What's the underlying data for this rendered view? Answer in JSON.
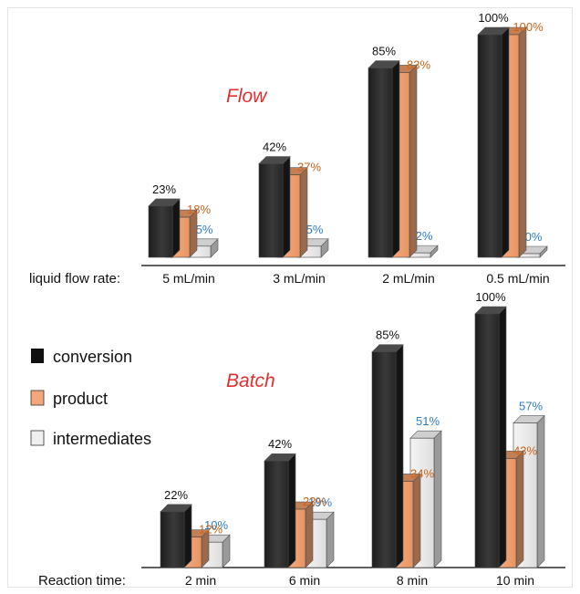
{
  "legend": [
    {
      "label": "conversion",
      "color": "#2b2b2b"
    },
    {
      "label": "product",
      "color": "#f4a77a"
    },
    {
      "label": "intermediates",
      "color": "#ececec"
    }
  ],
  "label_colors": {
    "conversion": "#111111",
    "product": "#c8651d",
    "intermediates": "#2f7fc4"
  },
  "chart_data": [
    {
      "type": "bar",
      "title": "Flow",
      "xlabel": "liquid flow rate:",
      "categories": [
        "5 mL/min",
        "3 mL/min",
        "2 mL/min",
        "0.5 mL/min"
      ],
      "series": [
        {
          "name": "conversion",
          "values": [
            23,
            42,
            85,
            100
          ],
          "labels": [
            "23%",
            "42%",
            "85%",
            "100%"
          ]
        },
        {
          "name": "product",
          "values": [
            18,
            37,
            83,
            100
          ],
          "labels": [
            "18%",
            "37%",
            "83%",
            "100%"
          ]
        },
        {
          "name": "intermediates",
          "values": [
            5,
            5,
            2,
            0
          ],
          "labels": [
            "5%",
            "5%",
            "2%",
            "0%"
          ]
        }
      ],
      "ylim": [
        0,
        100
      ]
    },
    {
      "type": "bar",
      "title": "Batch",
      "xlabel": "Reaction time:",
      "categories": [
        "2 min",
        "6 min",
        "8 min",
        "10 min"
      ],
      "series": [
        {
          "name": "conversion",
          "values": [
            22,
            42,
            85,
            100
          ],
          "labels": [
            "22%",
            "42%",
            "85%",
            "100%"
          ]
        },
        {
          "name": "product",
          "values": [
            12,
            23,
            34,
            43
          ],
          "labels": [
            "12%",
            "23%",
            "34%",
            "43%"
          ]
        },
        {
          "name": "intermediates",
          "values": [
            10,
            19,
            51,
            57
          ],
          "labels": [
            "10%",
            "19%",
            "51%",
            "57%"
          ]
        }
      ],
      "ylim": [
        0,
        100
      ]
    }
  ]
}
